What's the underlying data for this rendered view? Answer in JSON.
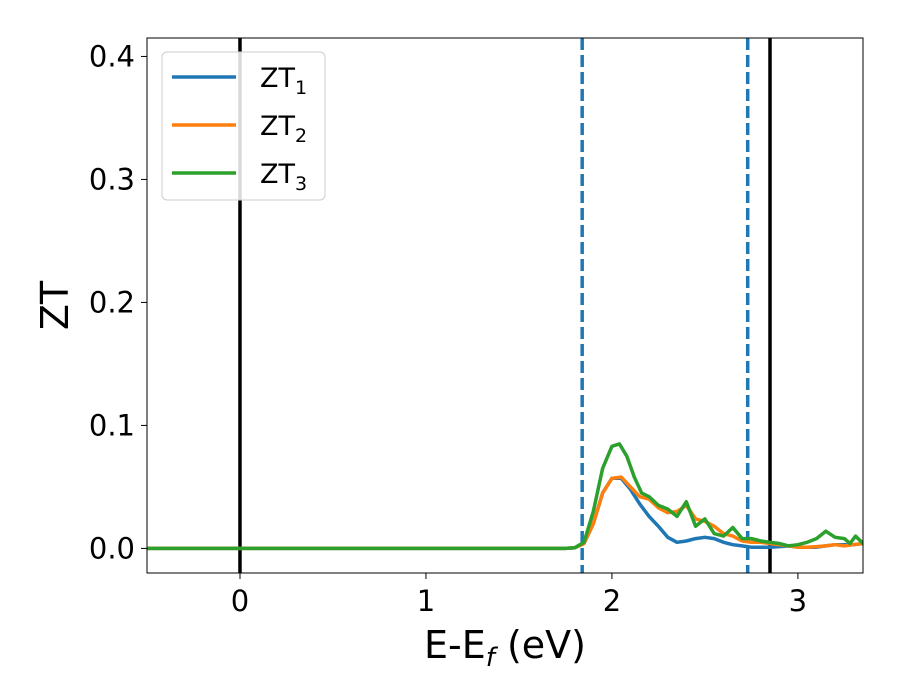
{
  "chart_data": {
    "type": "line",
    "xlabel": {
      "main": "E-E",
      "sub": "f",
      "suffix": " (eV)"
    },
    "ylabel": "ZT",
    "xlim": [
      -0.5,
      3.35
    ],
    "ylim": [
      -0.02,
      0.415
    ],
    "x_ticks": [
      0,
      1,
      2,
      3
    ],
    "x_tick_labels": [
      "0",
      "1",
      "2",
      "3"
    ],
    "y_ticks": [
      0.0,
      0.1,
      0.2,
      0.3,
      0.4
    ],
    "y_tick_labels": [
      "0.0",
      "0.1",
      "0.2",
      "0.3",
      "0.4"
    ],
    "grid": false,
    "legend_position": "top-left",
    "vertical_lines": [
      {
        "x": 0.0,
        "style": "solid",
        "color": "#000000"
      },
      {
        "x": 2.85,
        "style": "solid",
        "color": "#000000"
      },
      {
        "x": 1.84,
        "style": "dashed",
        "color": "#1f77b4"
      },
      {
        "x": 2.73,
        "style": "dashed",
        "color": "#1f77b4"
      }
    ],
    "series": [
      {
        "name": "ZT",
        "sub": "1",
        "color": "#1f77b4",
        "x": [
          -0.5,
          1.75,
          1.8,
          1.85,
          1.9,
          1.95,
          2.0,
          2.05,
          2.1,
          2.15,
          2.2,
          2.25,
          2.3,
          2.35,
          2.4,
          2.45,
          2.5,
          2.55,
          2.6,
          2.65,
          2.7,
          2.75,
          2.8,
          2.85,
          2.9,
          2.95,
          3.0,
          3.05,
          3.1,
          3.15,
          3.2,
          3.25,
          3.3,
          3.35
        ],
        "y": [
          0.0,
          0.0,
          0.0005,
          0.004,
          0.02,
          0.045,
          0.057,
          0.057,
          0.048,
          0.036,
          0.026,
          0.018,
          0.009,
          0.005,
          0.006,
          0.008,
          0.009,
          0.008,
          0.005,
          0.003,
          0.002,
          0.001,
          0.001,
          0.001,
          0.0015,
          0.002,
          0.001,
          0.001,
          0.001,
          0.002,
          0.003,
          0.003,
          0.003,
          0.004
        ]
      },
      {
        "name": "ZT",
        "sub": "2",
        "color": "#ff7f0e",
        "x": [
          -0.5,
          1.75,
          1.8,
          1.85,
          1.9,
          1.95,
          2.0,
          2.05,
          2.1,
          2.15,
          2.2,
          2.25,
          2.3,
          2.35,
          2.4,
          2.45,
          2.5,
          2.55,
          2.6,
          2.65,
          2.7,
          2.75,
          2.8,
          2.85,
          2.9,
          2.95,
          3.0,
          3.05,
          3.1,
          3.15,
          3.2,
          3.25,
          3.3,
          3.35
        ],
        "y": [
          0.0,
          0.0,
          0.0005,
          0.004,
          0.02,
          0.045,
          0.057,
          0.058,
          0.05,
          0.042,
          0.04,
          0.033,
          0.029,
          0.03,
          0.035,
          0.024,
          0.022,
          0.018,
          0.012,
          0.01,
          0.006,
          0.005,
          0.005,
          0.004,
          0.003,
          0.002,
          0.001,
          0.001,
          0.0015,
          0.002,
          0.003,
          0.002,
          0.003,
          0.004
        ]
      },
      {
        "name": "ZT",
        "sub": "3",
        "color": "#2ca02c",
        "x": [
          -0.5,
          1.75,
          1.8,
          1.85,
          1.9,
          1.95,
          2.0,
          2.04,
          2.08,
          2.12,
          2.16,
          2.2,
          2.25,
          2.3,
          2.35,
          2.4,
          2.45,
          2.5,
          2.55,
          2.6,
          2.65,
          2.7,
          2.75,
          2.8,
          2.85,
          2.9,
          2.95,
          3.0,
          3.05,
          3.1,
          3.15,
          3.2,
          3.25,
          3.28,
          3.31,
          3.35
        ],
        "y": [
          0.0,
          0.0,
          0.0005,
          0.005,
          0.03,
          0.065,
          0.083,
          0.085,
          0.075,
          0.058,
          0.045,
          0.042,
          0.035,
          0.032,
          0.026,
          0.038,
          0.018,
          0.024,
          0.012,
          0.01,
          0.017,
          0.008,
          0.008,
          0.006,
          0.005,
          0.004,
          0.002,
          0.003,
          0.005,
          0.008,
          0.014,
          0.009,
          0.008,
          0.004,
          0.01,
          0.004
        ]
      }
    ]
  }
}
